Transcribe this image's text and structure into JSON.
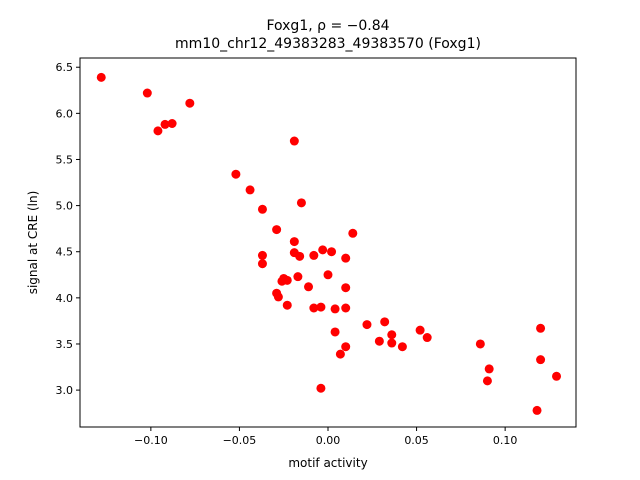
{
  "chart_data": {
    "type": "scatter",
    "title_line1": "Foxg1, ρ = −0.84",
    "title_line2": "mm10_chr12_49383283_49383570 (Foxg1)",
    "xlabel": "motif activity",
    "ylabel": "signal at CRE (ln)",
    "xlim": [
      -0.14,
      0.14
    ],
    "ylim": [
      2.6,
      6.6
    ],
    "x_ticks": [
      -0.1,
      -0.05,
      0.0,
      0.05,
      0.1
    ],
    "x_tick_labels": [
      "−0.10",
      "−0.05",
      "0.00",
      "0.05",
      "0.10"
    ],
    "y_ticks": [
      3.0,
      3.5,
      4.0,
      4.5,
      5.0,
      5.5,
      6.0,
      6.5
    ],
    "y_tick_labels": [
      "3.0",
      "3.5",
      "4.0",
      "4.5",
      "5.0",
      "5.5",
      "6.0",
      "6.5"
    ],
    "marker_color": "#ff0000",
    "grid": false,
    "points": [
      {
        "x": -0.128,
        "y": 6.39
      },
      {
        "x": -0.102,
        "y": 6.22
      },
      {
        "x": -0.078,
        "y": 6.11
      },
      {
        "x": -0.092,
        "y": 5.88
      },
      {
        "x": -0.088,
        "y": 5.89
      },
      {
        "x": -0.096,
        "y": 5.81
      },
      {
        "x": -0.019,
        "y": 5.7
      },
      {
        "x": -0.052,
        "y": 5.34
      },
      {
        "x": -0.044,
        "y": 5.17
      },
      {
        "x": -0.015,
        "y": 5.03
      },
      {
        "x": -0.037,
        "y": 4.96
      },
      {
        "x": -0.029,
        "y": 4.74
      },
      {
        "x": 0.014,
        "y": 4.7
      },
      {
        "x": -0.019,
        "y": 4.61
      },
      {
        "x": -0.003,
        "y": 4.52
      },
      {
        "x": 0.002,
        "y": 4.5
      },
      {
        "x": -0.019,
        "y": 4.49
      },
      {
        "x": -0.037,
        "y": 4.46
      },
      {
        "x": -0.016,
        "y": 4.45
      },
      {
        "x": -0.008,
        "y": 4.46
      },
      {
        "x": 0.01,
        "y": 4.43
      },
      {
        "x": -0.037,
        "y": 4.37
      },
      {
        "x": 0.0,
        "y": 4.25
      },
      {
        "x": -0.017,
        "y": 4.23
      },
      {
        "x": -0.025,
        "y": 4.21
      },
      {
        "x": -0.023,
        "y": 4.19
      },
      {
        "x": -0.026,
        "y": 4.18
      },
      {
        "x": -0.011,
        "y": 4.12
      },
      {
        "x": 0.01,
        "y": 4.11
      },
      {
        "x": -0.029,
        "y": 4.05
      },
      {
        "x": -0.028,
        "y": 4.01
      },
      {
        "x": -0.023,
        "y": 3.92
      },
      {
        "x": -0.004,
        "y": 3.9
      },
      {
        "x": -0.008,
        "y": 3.89
      },
      {
        "x": 0.01,
        "y": 3.89
      },
      {
        "x": 0.004,
        "y": 3.88
      },
      {
        "x": 0.032,
        "y": 3.74
      },
      {
        "x": 0.022,
        "y": 3.71
      },
      {
        "x": 0.052,
        "y": 3.65
      },
      {
        "x": 0.004,
        "y": 3.63
      },
      {
        "x": 0.036,
        "y": 3.6
      },
      {
        "x": 0.056,
        "y": 3.57
      },
      {
        "x": 0.029,
        "y": 3.53
      },
      {
        "x": 0.036,
        "y": 3.51
      },
      {
        "x": 0.086,
        "y": 3.5
      },
      {
        "x": 0.01,
        "y": 3.47
      },
      {
        "x": 0.042,
        "y": 3.47
      },
      {
        "x": 0.007,
        "y": 3.39
      },
      {
        "x": 0.12,
        "y": 3.67
      },
      {
        "x": 0.12,
        "y": 3.33
      },
      {
        "x": 0.091,
        "y": 3.23
      },
      {
        "x": 0.129,
        "y": 3.15
      },
      {
        "x": 0.09,
        "y": 3.1
      },
      {
        "x": -0.004,
        "y": 3.02
      },
      {
        "x": 0.118,
        "y": 2.78
      }
    ]
  }
}
